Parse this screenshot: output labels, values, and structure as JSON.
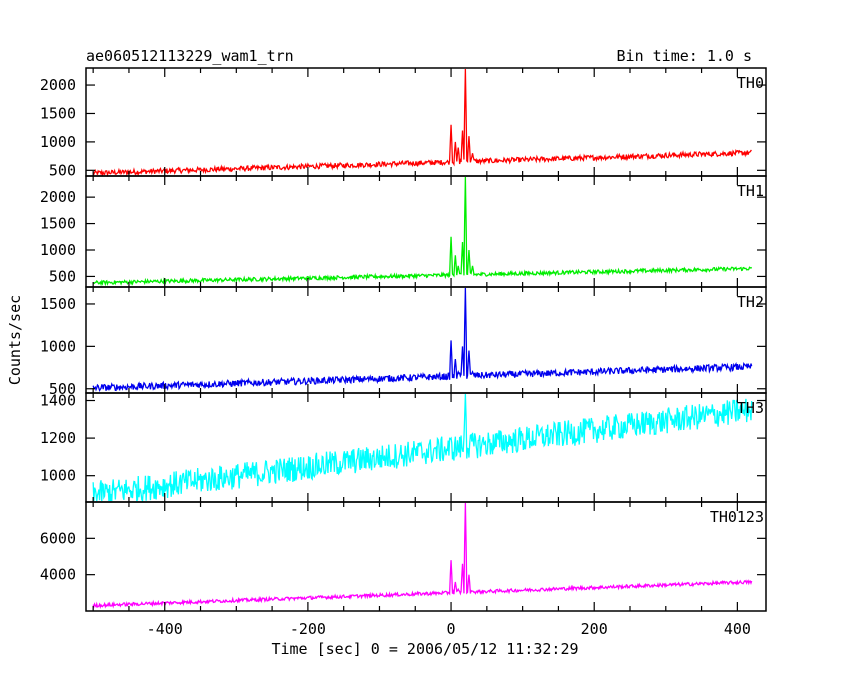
{
  "header": {
    "title": "ae060512113229_wam1_trn",
    "bin_time": "Bin time: 1.0 s"
  },
  "axes": {
    "xlabel": "Time [sec] 0 = 2006/05/12 11:32:29",
    "ylabel": "Counts/sec"
  },
  "chart_data": {
    "type": "line",
    "title": "ae060512113229_wam1_trn",
    "subtitle": "Bin time: 1.0 s",
    "xlabel": "Time [sec] 0 = 2006/05/12 11:32:29",
    "ylabel": "Counts/sec",
    "xlim": [
      -510,
      440
    ],
    "x_ticks": [
      -400,
      -200,
      0,
      200,
      400
    ],
    "x_range_data": [
      -500,
      420
    ],
    "grid": false,
    "panels": [
      {
        "name": "TH0",
        "color": "#ff0000",
        "ylim": [
          400,
          2300
        ],
        "y_ticks": [
          500,
          1000,
          1500,
          2000
        ],
        "baseline_start": 450,
        "baseline_end": 810,
        "noise": 45,
        "peaks": [
          [
            -20,
            560
          ],
          [
            0,
            1300
          ],
          [
            6,
            1000
          ],
          [
            10,
            900
          ],
          [
            16,
            1200
          ],
          [
            20,
            2300
          ],
          [
            25,
            1100
          ],
          [
            30,
            800
          ],
          [
            40,
            600
          ]
        ]
      },
      {
        "name": "TH1",
        "color": "#00ee00",
        "ylim": [
          300,
          2400
        ],
        "y_ticks": [
          500,
          1000,
          1500,
          2000
        ],
        "baseline_start": 380,
        "baseline_end": 650,
        "noise": 35,
        "peaks": [
          [
            -20,
            450
          ],
          [
            0,
            1250
          ],
          [
            6,
            900
          ],
          [
            10,
            700
          ],
          [
            16,
            1150
          ],
          [
            20,
            2400
          ],
          [
            25,
            1000
          ],
          [
            30,
            700
          ],
          [
            40,
            500
          ]
        ]
      },
      {
        "name": "TH2",
        "color": "#0000ee",
        "ylim": [
          450,
          1700
        ],
        "y_ticks": [
          500,
          1000,
          1500
        ],
        "baseline_start": 510,
        "baseline_end": 760,
        "noise": 40,
        "peaks": [
          [
            -20,
            600
          ],
          [
            0,
            1070
          ],
          [
            6,
            850
          ],
          [
            10,
            700
          ],
          [
            16,
            1000
          ],
          [
            20,
            1710
          ],
          [
            25,
            950
          ],
          [
            30,
            700
          ],
          [
            40,
            620
          ]
        ]
      },
      {
        "name": "TH3",
        "color": "#00ffff",
        "ylim": [
          860,
          1440
        ],
        "y_ticks": [
          1000,
          1200,
          1400
        ],
        "baseline_start": 900,
        "baseline_end": 1350,
        "noise": 70,
        "peaks": [
          [
            0,
            1200
          ],
          [
            20,
            1440
          ],
          [
            30,
            1200
          ]
        ]
      },
      {
        "name": "TH0123",
        "color": "#ff00ff",
        "ylim": [
          2000,
          8000
        ],
        "y_ticks": [
          4000,
          6000
        ],
        "baseline_start": 2300,
        "baseline_end": 3600,
        "noise": 90,
        "peaks": [
          [
            -20,
            2800
          ],
          [
            0,
            4800
          ],
          [
            6,
            3600
          ],
          [
            10,
            3200
          ],
          [
            16,
            4600
          ],
          [
            20,
            8000
          ],
          [
            25,
            4000
          ],
          [
            30,
            3100
          ],
          [
            40,
            2900
          ]
        ]
      }
    ]
  }
}
